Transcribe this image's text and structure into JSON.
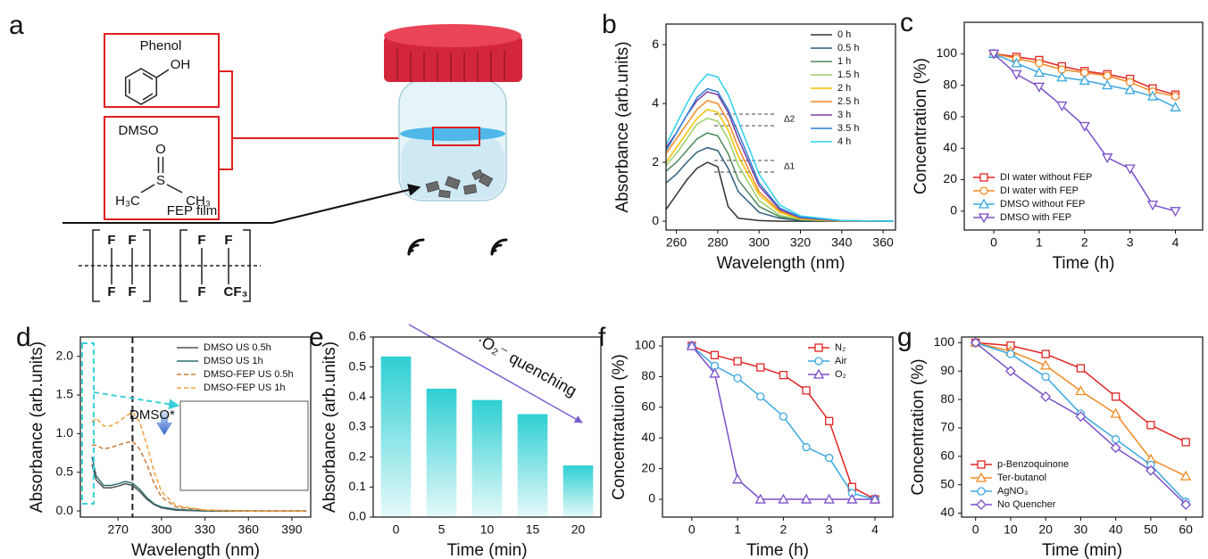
{
  "diagram": {
    "panel": "a",
    "phenol": {
      "name": "Phenol",
      "group": "OH"
    },
    "dmso": {
      "name": "DMSO",
      "atoms": [
        "O",
        "S",
        "H₃C",
        "CH₃"
      ]
    },
    "fep": {
      "name": "FEP film",
      "atoms": [
        "F",
        "F",
        "F",
        "F",
        "F",
        "F",
        "F",
        "CF₃"
      ]
    }
  },
  "chart_data": [
    {
      "panel": "b",
      "type": "line",
      "xlabel": "Wavelength (nm)",
      "ylabel": "Absorbance (arb.units)",
      "x": [
        255,
        260,
        265,
        270,
        275,
        280,
        285,
        290,
        300,
        310,
        320,
        340,
        365
      ],
      "xlim": [
        255,
        366
      ],
      "xticks": [
        260,
        280,
        300,
        320,
        340,
        360
      ],
      "ylim": [
        -0.3,
        6.7
      ],
      "yticks": [
        0,
        2,
        4,
        6
      ],
      "legend": "upper right",
      "annotations": [
        "Δ2",
        "Δ1"
      ],
      "series": [
        {
          "name": "0 h",
          "color": "#333333",
          "values": [
            0.4,
            0.9,
            1.4,
            1.8,
            2.0,
            1.85,
            0.5,
            0.1,
            0.02,
            0,
            0,
            0,
            0
          ]
        },
        {
          "name": "0.5 h",
          "color": "#2f5f7a",
          "values": [
            1.3,
            1.6,
            2.0,
            2.35,
            2.5,
            2.4,
            1.8,
            1.0,
            0.3,
            0.1,
            0.03,
            0,
            0
          ]
        },
        {
          "name": "1 h",
          "color": "#4f8a5a",
          "values": [
            1.7,
            2.0,
            2.4,
            2.8,
            3.0,
            2.9,
            2.3,
            1.4,
            0.5,
            0.15,
            0.05,
            0,
            0
          ]
        },
        {
          "name": "1.5 h",
          "color": "#9ccf6a",
          "values": [
            1.9,
            2.3,
            2.8,
            3.3,
            3.5,
            3.4,
            2.8,
            1.9,
            0.7,
            0.2,
            0.06,
            0,
            0
          ]
        },
        {
          "name": "2 h",
          "color": "#f2c200",
          "values": [
            2.0,
            2.5,
            3.0,
            3.5,
            3.8,
            3.7,
            3.1,
            2.2,
            0.9,
            0.3,
            0.08,
            0,
            0
          ]
        },
        {
          "name": "2.5 h",
          "color": "#f08a24",
          "values": [
            2.3,
            2.8,
            3.3,
            3.8,
            4.1,
            4.0,
            3.4,
            2.5,
            1.0,
            0.35,
            0.1,
            0,
            0
          ]
        },
        {
          "name": "3 h",
          "color": "#7a3fa0",
          "values": [
            2.5,
            3.0,
            3.6,
            4.1,
            4.4,
            4.3,
            3.7,
            2.8,
            1.2,
            0.4,
            0.12,
            0.01,
            0
          ]
        },
        {
          "name": "3.5 h",
          "color": "#2f7fd6",
          "values": [
            2.4,
            3.0,
            3.6,
            4.2,
            4.5,
            4.4,
            3.8,
            3.0,
            1.3,
            0.45,
            0.14,
            0.02,
            0
          ]
        },
        {
          "name": "4 h",
          "color": "#2fd0f0",
          "values": [
            2.6,
            3.3,
            4.0,
            4.6,
            5.0,
            4.9,
            4.3,
            3.4,
            1.6,
            0.55,
            0.18,
            0.02,
            0
          ]
        }
      ]
    },
    {
      "panel": "c",
      "type": "line",
      "xlabel": "Time (h)",
      "ylabel": "Concentration (%)",
      "x": [
        0,
        0.5,
        1,
        1.5,
        2,
        2.5,
        3,
        3.5,
        4
      ],
      "xlim": [
        -0.65,
        4.6
      ],
      "xticks": [
        0,
        1,
        2,
        3,
        4
      ],
      "ylim": [
        -12,
        120
      ],
      "yticks": [
        0,
        20,
        40,
        60,
        80,
        100
      ],
      "legend": "lower left",
      "series": [
        {
          "name": "DI water without FEP",
          "color": "#e02424",
          "marker": "square",
          "values": [
            100,
            98,
            96,
            92,
            89,
            87,
            84,
            78,
            74
          ]
        },
        {
          "name": "DI water with FEP",
          "color": "#f08a24",
          "marker": "circle",
          "values": [
            100,
            97,
            94,
            90,
            88,
            86,
            82,
            76,
            73
          ]
        },
        {
          "name": "DMSO without FEP",
          "color": "#3aa8e0",
          "marker": "triangle",
          "values": [
            100,
            94,
            88,
            85,
            83,
            80,
            77,
            73,
            66
          ]
        },
        {
          "name": "DMSO with FEP",
          "color": "#7a4fc8",
          "marker": "triangle-down",
          "values": [
            100,
            87,
            79,
            67,
            54,
            34,
            27,
            4,
            0
          ]
        }
      ]
    },
    {
      "panel": "d",
      "type": "line",
      "xlabel": "Wavelength (nm)",
      "ylabel": "Absorbance (arb.units)",
      "x": [
        252,
        255,
        260,
        265,
        270,
        275,
        280,
        285,
        290,
        295,
        300,
        310,
        330,
        360,
        400
      ],
      "xlim": [
        244,
        403
      ],
      "xticks": [
        270,
        300,
        330,
        360,
        390
      ],
      "ylim": [
        -0.08,
        2.25
      ],
      "yticks": [
        {
          "value": 0,
          "label": "0.0"
        },
        0.5,
        {
          "value": 1,
          "label": "1.0"
        },
        1.5,
        {
          "value": 2,
          "label": "2.0"
        }
      ],
      "legend": "upper right",
      "vline": 280,
      "annotation": "DMSO*",
      "series": [
        {
          "name": "DMSO US 0.5h",
          "color": "#555555",
          "values": [
            0.6,
            0.4,
            0.3,
            0.3,
            0.32,
            0.35,
            0.33,
            0.25,
            0.15,
            0.08,
            0.04,
            0.01,
            0,
            0,
            0
          ]
        },
        {
          "name": "DMSO US 1h",
          "color": "#2f6f6f",
          "values": [
            0.7,
            0.45,
            0.33,
            0.33,
            0.35,
            0.38,
            0.36,
            0.28,
            0.17,
            0.09,
            0.05,
            0.02,
            0,
            0,
            0
          ]
        },
        {
          "name": "DMSO-FEP US 0.5h",
          "color": "#c87a3a",
          "line_style": "dashed",
          "values": [
            0.85,
            0.85,
            0.8,
            0.82,
            0.85,
            0.88,
            0.9,
            0.8,
            0.6,
            0.35,
            0.18,
            0.05,
            0.01,
            0,
            0
          ]
        },
        {
          "name": "DMSO-FEP US 1h",
          "color": "#f0a040",
          "line_style": "dashed",
          "values": [
            1.15,
            1.2,
            1.1,
            1.1,
            1.15,
            1.22,
            1.28,
            1.15,
            0.85,
            0.5,
            0.25,
            0.07,
            0.01,
            0,
            0
          ]
        }
      ]
    },
    {
      "panel": "e",
      "type": "bar",
      "xlabel": "Time (min)",
      "ylabel": "Absorbance (arb.units)",
      "categories": [
        "0",
        "5",
        "10",
        "15",
        "20"
      ],
      "values": [
        0.535,
        0.428,
        0.39,
        0.343,
        0.172
      ],
      "color": "#2ecfd3",
      "ylim": [
        0,
        0.6
      ],
      "yticks": [
        {
          "value": 0,
          "label": "0.0"
        },
        0.1,
        0.2,
        0.3,
        0.4,
        0.5,
        0.6
      ],
      "annotation": "·O₂⁻ quenching"
    },
    {
      "panel": "f",
      "type": "line",
      "xlabel": "Time (h)",
      "ylabel": "Concentratuion (%)",
      "x": [
        0,
        0.5,
        1,
        1.5,
        2,
        2.5,
        3,
        3.5,
        4
      ],
      "xlim": [
        -0.64,
        4.39
      ],
      "xticks": [
        0,
        1,
        2,
        3,
        4
      ],
      "ylim": [
        -11.6,
        105.8
      ],
      "yticks": [
        0,
        20,
        40,
        60,
        80,
        100
      ],
      "legend": "upper right",
      "series": [
        {
          "name": "N₂",
          "color": "#e02424",
          "marker": "square",
          "values": [
            100,
            94,
            90,
            86,
            81,
            71,
            51,
            8,
            0
          ]
        },
        {
          "name": "Air",
          "color": "#3aa8e0",
          "marker": "circle",
          "values": [
            100,
            87,
            79,
            67,
            54,
            34,
            27,
            4,
            0
          ]
        },
        {
          "name": "O₂",
          "color": "#7a4fc8",
          "marker": "triangle",
          "values": [
            100,
            82,
            13,
            0,
            0,
            0,
            0,
            0,
            0
          ]
        }
      ]
    },
    {
      "panel": "g",
      "type": "line",
      "xlabel": "Time (min)",
      "ylabel": "Concentration (%)",
      "x": [
        0,
        10,
        20,
        30,
        40,
        50,
        60
      ],
      "xlim": [
        -4,
        64.8
      ],
      "xticks": [
        0,
        10,
        20,
        30,
        40,
        50,
        60
      ],
      "ylim": [
        38.6,
        102
      ],
      "yticks": [
        40,
        50,
        60,
        70,
        80,
        90,
        100
      ],
      "legend": "lower left",
      "series": [
        {
          "name": "p-Benzoquinone",
          "color": "#e02424",
          "marker": "square",
          "values": [
            100,
            99,
            96,
            91,
            81,
            71,
            65
          ]
        },
        {
          "name": "Ter-butanol",
          "color": "#f08a24",
          "marker": "triangle",
          "values": [
            100,
            97,
            92,
            83,
            75,
            59,
            53
          ]
        },
        {
          "name": "AgNO₃",
          "color": "#3aa8e0",
          "marker": "circle",
          "values": [
            100,
            96,
            88,
            75,
            66,
            57,
            44
          ]
        },
        {
          "name": "No Quencher",
          "color": "#7a4fc8",
          "marker": "diamond",
          "values": [
            100,
            90,
            81,
            74,
            63,
            55,
            43
          ]
        }
      ]
    }
  ]
}
